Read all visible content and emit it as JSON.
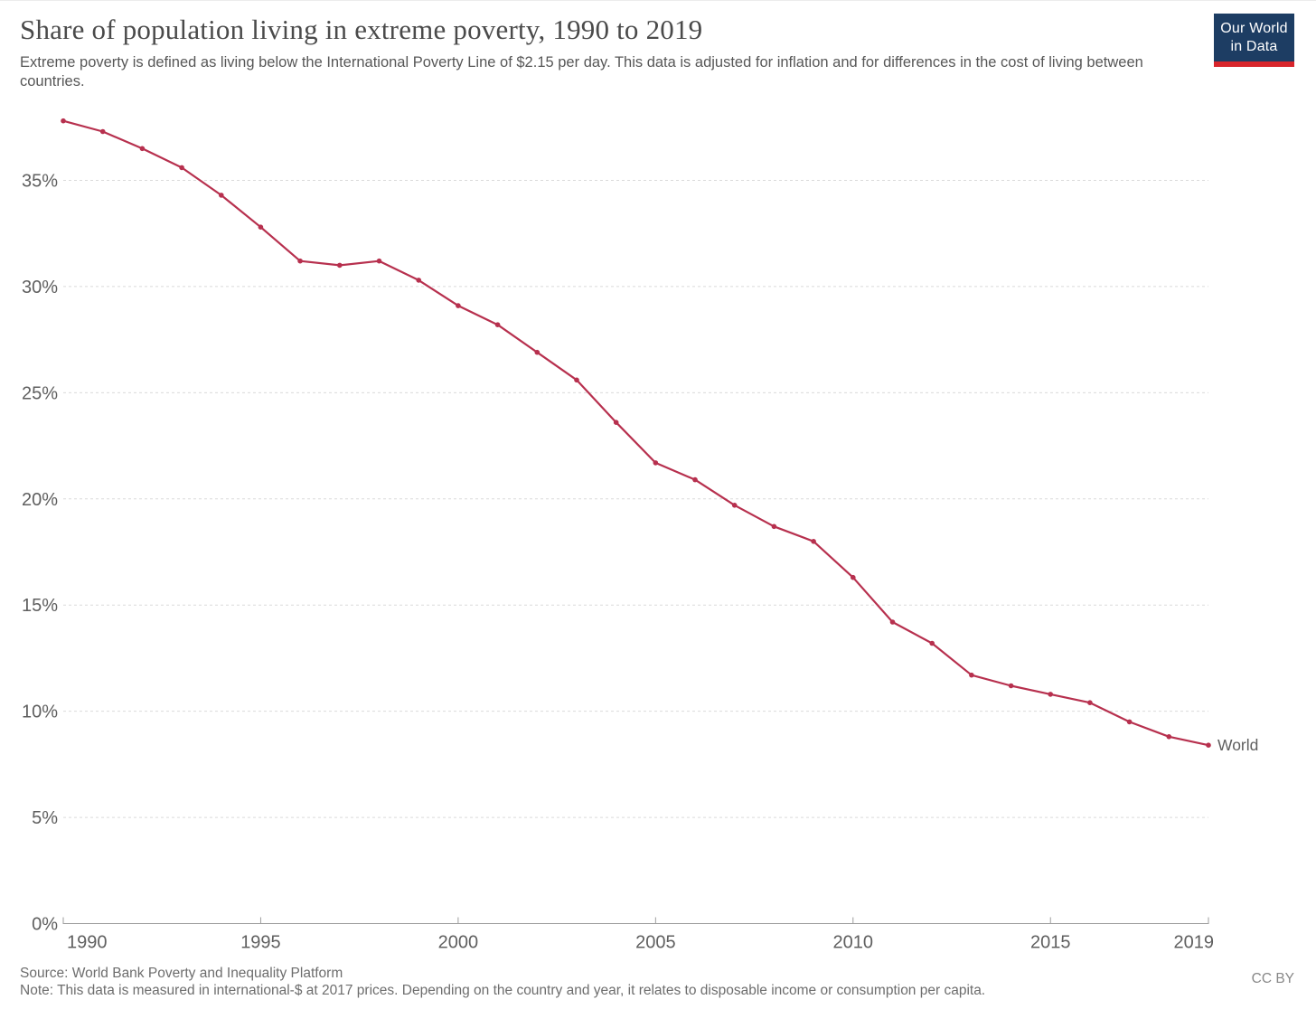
{
  "header": {
    "title": "Share of population living in extreme poverty, 1990 to 2019",
    "subtitle": "Extreme poverty is defined as living below the International Poverty Line of $2.15 per day. This data is adjusted for inflation and for differences in the cost of living between countries.",
    "logo": {
      "line1": "Our World",
      "line2": "in Data",
      "background_color": "#1d3d63",
      "accent_color": "#d8252b"
    }
  },
  "chart_data": {
    "type": "line",
    "title": "Share of population living in extreme poverty, 1990 to 2019",
    "xlabel": "",
    "ylabel": "",
    "x": [
      1990,
      1991,
      1992,
      1993,
      1994,
      1995,
      1996,
      1997,
      1998,
      1999,
      2000,
      2001,
      2002,
      2003,
      2004,
      2005,
      2006,
      2007,
      2008,
      2009,
      2010,
      2011,
      2012,
      2013,
      2014,
      2015,
      2016,
      2017,
      2018,
      2019
    ],
    "series": [
      {
        "name": "World",
        "color": "#b7304e",
        "values": [
          37.8,
          37.3,
          36.5,
          35.6,
          34.3,
          32.8,
          31.2,
          31.0,
          31.2,
          30.3,
          29.1,
          28.2,
          26.9,
          25.6,
          23.6,
          21.7,
          20.9,
          19.7,
          18.7,
          18.0,
          16.3,
          14.2,
          13.2,
          11.7,
          11.2,
          10.8,
          10.4,
          9.5,
          8.8,
          8.4
        ]
      }
    ],
    "xlim": [
      1990,
      2019
    ],
    "ylim": [
      0,
      38.5
    ],
    "x_ticks": [
      1990,
      1995,
      2000,
      2005,
      2010,
      2015,
      2019
    ],
    "y_ticks": [
      0,
      5,
      10,
      15,
      20,
      25,
      30,
      35
    ],
    "y_tick_suffix": "%",
    "grid": "horizontal dashed gridlines, solid baseline at 0%",
    "legend": "end-of-line label",
    "end_label": "World",
    "markers": "small filled circles on every data point"
  },
  "footer": {
    "source": "Source: World Bank Poverty and Inequality Platform",
    "note": "Note: This data is measured in international-$ at 2017 prices. Depending on the country and year, it relates to disposable income or consumption per capita.",
    "license": "CC BY"
  }
}
